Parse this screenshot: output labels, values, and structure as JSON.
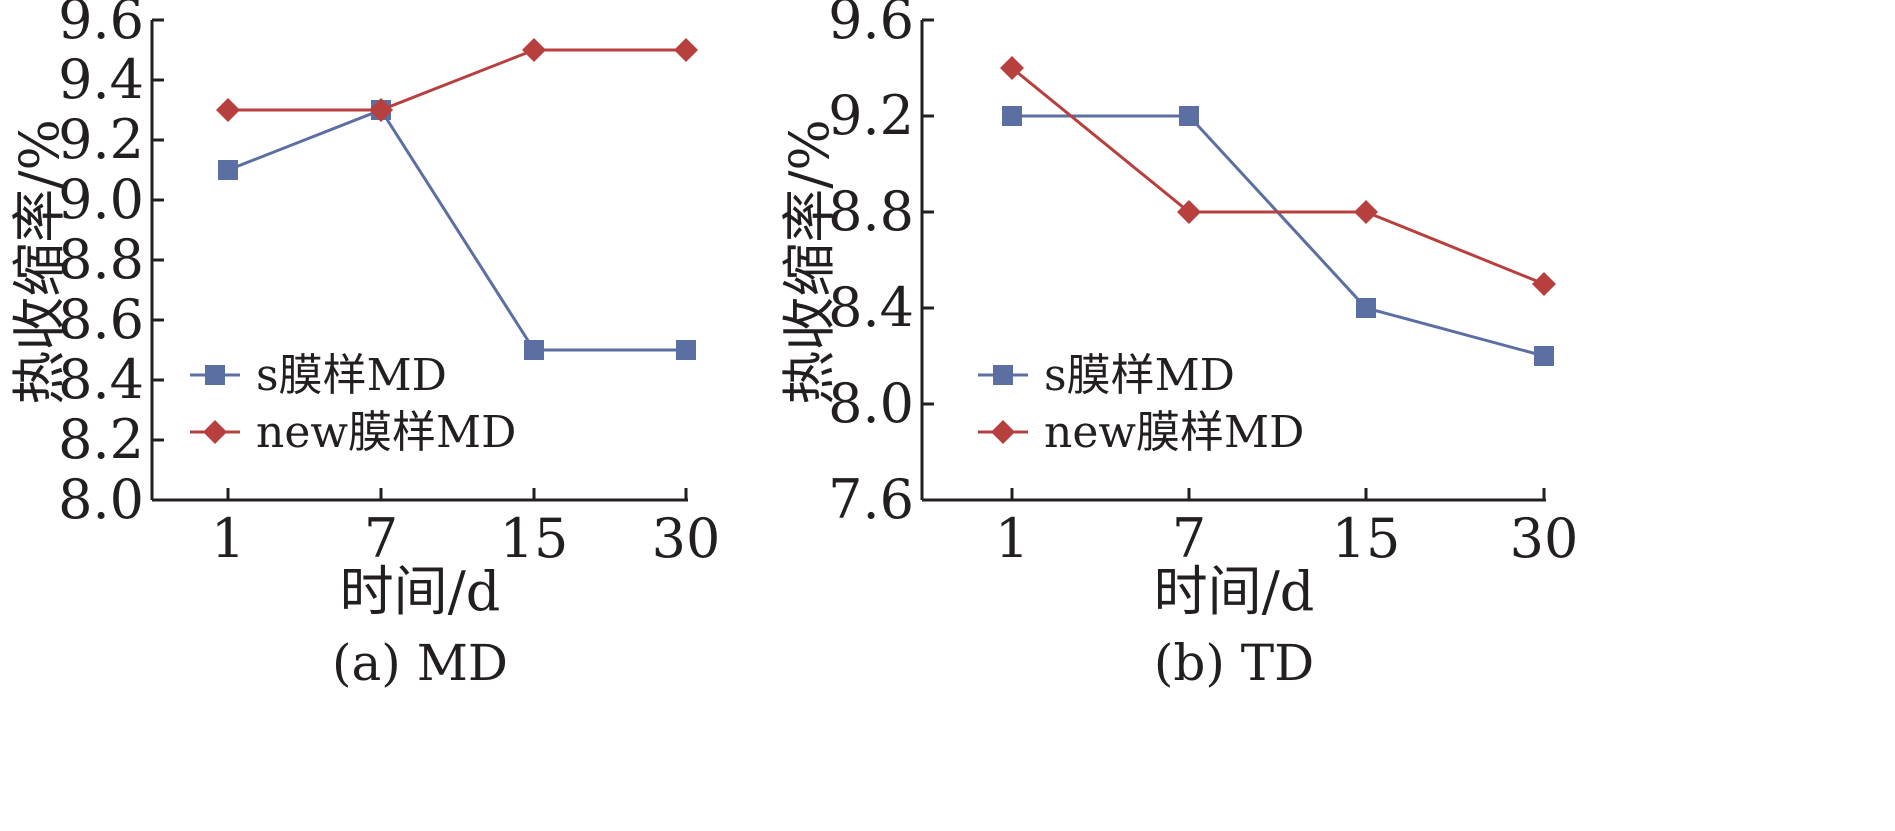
{
  "colors": {
    "axis": "#231f20",
    "s_series": "#5b6fa3",
    "new_series": "#b7403f"
  },
  "chart_data": [
    {
      "type": "line",
      "caption": "(a) MD",
      "xlabel": "时间/d",
      "ylabel": "热收缩率/%",
      "categories": [
        "1",
        "7",
        "15",
        "30"
      ],
      "ylim": [
        8.0,
        9.6
      ],
      "yticks": [
        "8.0",
        "8.2",
        "8.4",
        "8.6",
        "8.8",
        "9.0",
        "9.2",
        "9.4",
        "9.6"
      ],
      "legend_position": "lower-left",
      "series": [
        {
          "name": "s膜样MD",
          "marker": "square",
          "color": "#5b6fa3",
          "values": [
            9.1,
            9.3,
            8.5,
            8.5
          ]
        },
        {
          "name": "new膜样MD",
          "marker": "diamond",
          "color": "#b7403f",
          "values": [
            9.3,
            9.3,
            9.5,
            9.5
          ]
        }
      ]
    },
    {
      "type": "line",
      "caption": "(b) TD",
      "xlabel": "时间/d",
      "ylabel": "热收缩率/%",
      "categories": [
        "1",
        "7",
        "15",
        "30"
      ],
      "ylim": [
        7.6,
        9.6
      ],
      "yticks": [
        "7.6",
        "8.0",
        "8.4",
        "8.8",
        "9.2",
        "9.6"
      ],
      "legend_position": "lower-left",
      "series": [
        {
          "name": "s膜样MD",
          "marker": "square",
          "color": "#5b6fa3",
          "values": [
            9.2,
            9.2,
            8.4,
            8.2
          ]
        },
        {
          "name": "new膜样MD",
          "marker": "diamond",
          "color": "#b7403f",
          "values": [
            9.4,
            8.8,
            8.8,
            8.5
          ]
        }
      ]
    }
  ]
}
